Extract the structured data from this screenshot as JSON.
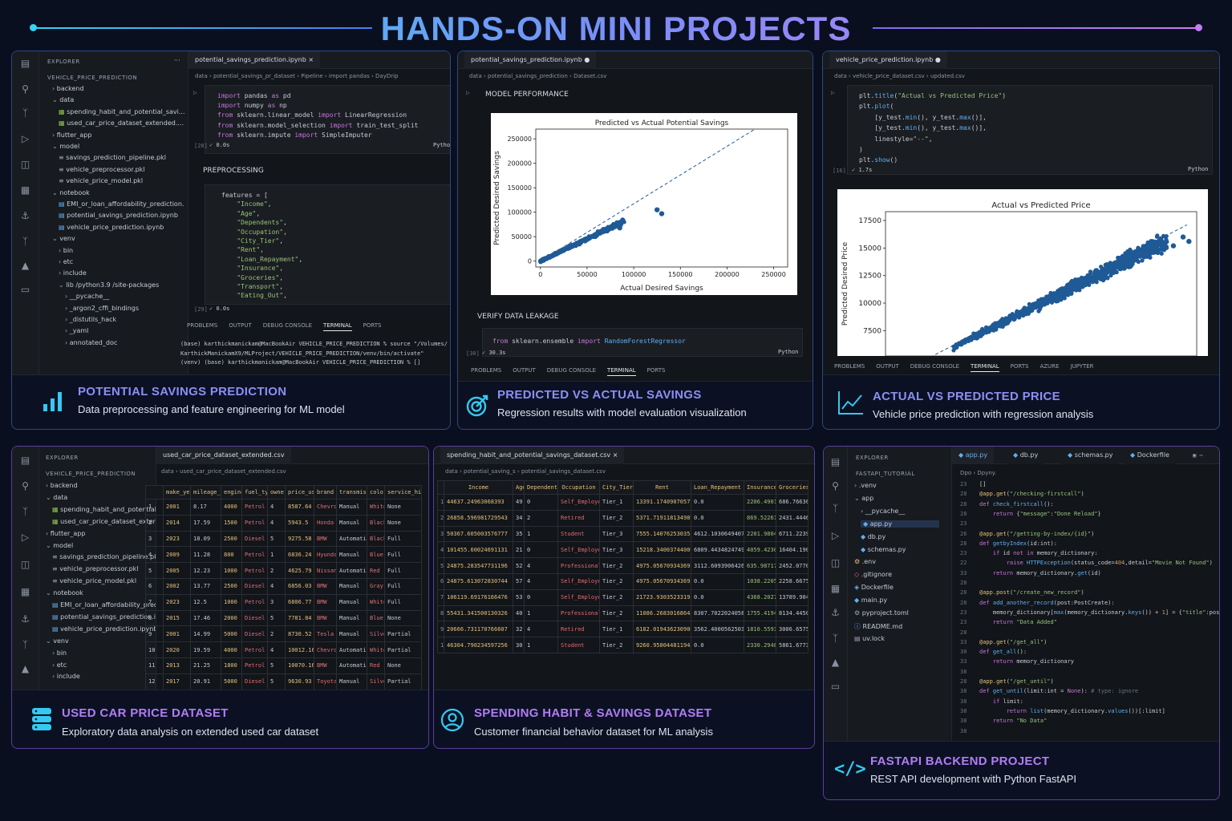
{
  "header": {
    "title": "HANDS-ON MINI PROJECTS"
  },
  "cards": {
    "c1": {
      "title": "POTENTIAL SAVINGS PREDICTION",
      "subtitle": "Data preprocessing and feature engineering for ML model",
      "icon": "bar-chart-icon"
    },
    "c2": {
      "title": "PREDICTED VS ACTUAL SAVINGS",
      "subtitle": "Regression results with model evaluation visualization",
      "icon": "target-icon"
    },
    "c3": {
      "title": "ACTUAL VS PREDICTED PRICE",
      "subtitle": "Vehicle price prediction with regression analysis",
      "icon": "line-chart-icon"
    },
    "c4": {
      "title": "USED CAR PRICE DATASET",
      "subtitle": "Exploratory data analysis on extended used car dataset",
      "icon": "database-icon"
    },
    "c5": {
      "title": "SPENDING HABIT & SAVINGS DATASET",
      "subtitle": "Customer financial behavior dataset for ML analysis",
      "icon": "user-circle-icon"
    },
    "c6": {
      "title": "FASTAPI BACKEND PROJECT",
      "subtitle": "REST API development with Python FastAPI",
      "icon": "code-icon"
    }
  },
  "s1": {
    "explorer": "EXPLORER",
    "root": "VEHICLE_PRICE_PREDICTION",
    "tree": [
      "backend",
      "data",
      "spending_habit_and_potential_savi...",
      "used_car_price_dataset_extended....",
      "flutter_app",
      "model",
      "savings_prediction_pipeline.pkl",
      "vehicle_preprocessor.pkl",
      "vehicle_price_model.pkl",
      "notebook",
      "EMI_or_loan_affordability_prediction.",
      "potential_savings_prediction.ipynb",
      "vehicle_price_prediction.ipynb",
      "venv",
      "bin",
      "etc",
      "include",
      "lib /python3.9 /site-packages",
      "__pycache__",
      "_argon2_cffi_bindings",
      "_distutils_hack",
      "_yaml",
      "annotated_doc"
    ],
    "tab": "potential_savings_prediction.ipynb",
    "crumb": "data  ›  potential_savings_pr_dataset  ›  Pipeline  ›  import pandas  ›  DayDrip",
    "code1": [
      "import pandas as pd",
      "import numpy as np",
      "from sklearn.linear_model import LinearRegression",
      "from sklearn.model_selection import train_test_split",
      "from sklearn.impute import SimpleImputer"
    ],
    "exec1": "[28]",
    "time1": "0.0s",
    "lang": "Python",
    "section": "PREPROCESSING",
    "code2": [
      "features = [",
      "    \"Income\",",
      "    \"Age\",",
      "    \"Dependents\",",
      "    \"Occupation\",",
      "    \"City_Tier\",",
      "    \"Rent\",",
      "    \"Loan_Repayment\",",
      "    \"Insurance\",",
      "    \"Groceries\",",
      "    \"Transport\",",
      "    \"Eating_Out\","
    ],
    "exec2": "[29]",
    "time2": "0.0s",
    "panel_tabs": [
      "PROBLEMS",
      "OUTPUT",
      "DEBUG CONSOLE",
      "TERMINAL",
      "PORTS"
    ],
    "terminal": [
      "(base) karthickmanickam@MacBookAir VEHICLE_PRICE_PREDICTION % source \"/Volumes/",
      "KarthickManickamX9/MLProject/VEHICLE_PRICE_PREDICTION/venv/bin/activate\"",
      "(venv) (base) karthickmanickam@MacBookAir VEHICLE_PRICE_PREDICTION % []"
    ]
  },
  "s2": {
    "tab": "potential_savings_prediction.ipynb",
    "crumb": "data  ›  potential_savings_prediction  ›  Dataset.csv",
    "section": "MODEL PERFORMANCE",
    "section2": "VERIFY DATA LEAKAGE",
    "code": "from sklearn.ensemble import RandomForestRegressor",
    "exec": "[30]",
    "time": "30.3s",
    "lang": "Python",
    "panel_tabs": [
      "PROBLEMS",
      "OUTPUT",
      "DEBUG CONSOLE",
      "TERMINAL",
      "PORTS"
    ]
  },
  "s3": {
    "tab": "vehicle_price_prediction.ipynb",
    "crumb": "data  ›  vehicle_price_dataset.csv  ›  updated.csv",
    "code": [
      "plt.title(\"Actual vs Predicted Price\")",
      "plt.plot(",
      "    [y_test.min(), y_test.max()],",
      "    [y_test.min(), y_test.max()],",
      "    linestyle=\"--\",",
      ")",
      "plt.show()"
    ],
    "exec": "[16]",
    "time": "1.7s",
    "lang": "Python",
    "panel_tabs": [
      "PROBLEMS",
      "OUTPUT",
      "DEBUG CONSOLE",
      "TERMINAL",
      "PORTS",
      "AZURE",
      "JUPYTER"
    ]
  },
  "s4": {
    "explorer": "EXPLORER",
    "root": "VEHICLE_PRICE_PREDICTION",
    "tree": [
      "backend",
      "data",
      "spending_habit_and_potential_savi...",
      "used_car_price_dataset_extended....",
      "flutter_app",
      "model",
      "savings_prediction_pipeline.pkl",
      "vehicle_preprocessor.pkl",
      "vehicle_price_model.pkl",
      "notebook",
      "EMI_or_loan_affordability_prediction",
      "potential_savings_prediction.ipynb",
      "vehicle_price_prediction.ipynb",
      "venv",
      "bin",
      "etc",
      "include"
    ],
    "tab": "used_car_price_dataset_extended.csv",
    "crumb": "data  ›  used_car_price_dataset_extended.csv",
    "columns": [
      "make_year",
      "mileage_km",
      "engine_cc",
      "fuel_type",
      "owner_count",
      "price_usd",
      "brand",
      "transmission",
      "color",
      "service_history"
    ],
    "rows": [
      [
        "1",
        "2001",
        "8.17",
        "4000",
        "Petrol",
        "4",
        "8587.64",
        "Chevrolet",
        "Manual",
        "White",
        "None"
      ],
      [
        "2",
        "2014",
        "17.59",
        "1500",
        "Petrol",
        "4",
        "5943.5",
        "Honda",
        "Manual",
        "Black",
        "None"
      ],
      [
        "3",
        "2023",
        "18.09",
        "2500",
        "Diesel",
        "5",
        "9275.58",
        "BMW",
        "Automatic",
        "Black",
        "Full"
      ],
      [
        "4",
        "2009",
        "11.28",
        "800",
        "Petrol",
        "1",
        "6836.24",
        "Hyundai",
        "Manual",
        "Blue",
        "Full"
      ],
      [
        "5",
        "2005",
        "12.23",
        "1000",
        "Petrol",
        "2",
        "4625.79",
        "Nissan",
        "Automatic",
        "Red",
        "Full"
      ],
      [
        "6",
        "2002",
        "13.77",
        "2500",
        "Diesel",
        "4",
        "6856.03",
        "BMW",
        "Manual",
        "Gray",
        "Full"
      ],
      [
        "7",
        "2023",
        "12.5",
        "1000",
        "Petrol",
        "3",
        "6806.77",
        "BMW",
        "Manual",
        "White",
        "Full"
      ],
      [
        "8",
        "2015",
        "17.46",
        "2000",
        "Diesel",
        "5",
        "7781.84",
        "BMW",
        "Manual",
        "Blue",
        "None"
      ],
      [
        "9",
        "2001",
        "14.99",
        "5000",
        "Diesel",
        "2",
        "8730.52",
        "Tesla",
        "Manual",
        "Silver",
        "Partial"
      ],
      [
        "10",
        "2020",
        "19.59",
        "4000",
        "Petrol",
        "4",
        "10012.16",
        "Chevrolet",
        "Automatic",
        "White",
        "Partial"
      ],
      [
        "11",
        "2013",
        "21.25",
        "1800",
        "Petrol",
        "5",
        "10070.16",
        "BMW",
        "Automatic",
        "Red",
        "None"
      ],
      [
        "12",
        "2017",
        "20.91",
        "5000",
        "Diesel",
        "5",
        "9630.93",
        "Toyota",
        "Manual",
        "Silver",
        "Partial"
      ]
    ]
  },
  "s5": {
    "tab": "spending_habit_and_potential_savings_dataset.csv",
    "crumb": "data  ›  potential_saving_s  ›  potential_savings_dataset.csv",
    "columns": [
      "Income",
      "Age",
      "Dependents",
      "Occupation",
      "City_Tier",
      "Rent",
      "Loan_Repayment",
      "Insurance",
      "Groceries"
    ],
    "rows": [
      [
        "1",
        "44637.24963068393",
        "49",
        "0",
        "Self_Employed",
        "Tier_1",
        "13391.174090705777",
        "0.0",
        "2206.4901250186",
        "686.76636572..."
      ],
      [
        "2",
        "26858.596981729543",
        "34",
        "2",
        "Retired",
        "Tier_2",
        "5371.719118134989",
        "0.0",
        "869.522610397243",
        "2431.44466010..."
      ],
      [
        "3",
        "50367.605003576777",
        "35",
        "1",
        "Student",
        "Tier_3",
        "7555.140762530351",
        "4612.103064940755",
        "2201.980490484",
        "6711.22390090..."
      ],
      [
        "4",
        "101455.60024691131",
        "21",
        "0",
        "Self_Employed",
        "Tier_3",
        "15218.340037440092",
        "6809.443482474919",
        "4059.42303787210",
        "16404.1903373..."
      ],
      [
        "5",
        "24875.283547731196",
        "52",
        "4",
        "Professional",
        "Tier_2",
        "4975.056709343692",
        "3112.609390642692",
        "635.987176965357",
        "2452.07707735..."
      ],
      [
        "6",
        "24875.613072830744",
        "57",
        "4",
        "Self_Employed",
        "Tier_2",
        "4975.056709343692",
        "0.0",
        "1038.22059252043",
        "2258.66758892..."
      ],
      [
        "7",
        "106119.69176166476",
        "53",
        "0",
        "Self_Employed",
        "Tier_2",
        "21723.930352331955",
        "0.0",
        "4368.202710231157",
        "13789.9049551..."
      ],
      [
        "8",
        "55431.341500130326",
        "40",
        "1",
        "Professional",
        "Tier_2",
        "11086.268301686453",
        "8307.70220240580",
        "1755.41943850307",
        "8134.4450066..."
      ],
      [
        "9",
        "20666.731170766607",
        "32",
        "4",
        "Retired",
        "Tier_1",
        "6182.019436230906",
        "3562.400056250373",
        "1810.55935963197",
        "3006.6575550..."
      ],
      [
        "10",
        "46304.790234597256",
        "30",
        "1",
        "Student",
        "Tier_2",
        "9260.958044811945",
        "0.0",
        "2330.29483450996",
        "5861.6773234..."
      ]
    ]
  },
  "s6": {
    "explorer": "EXPLORER",
    "root": "FASTAPI_TUTORIAL",
    "tree": [
      ".venv",
      "app",
      "__pycache__",
      "app.py",
      "db.py",
      "schemas.py",
      ".env",
      ".gitignore",
      "Dockerfile",
      "main.py",
      "pyproject.toml",
      "README.md",
      "uv.lock"
    ],
    "tabs": [
      "app.py",
      "db.py",
      "schemas.py",
      "Dockerfile"
    ],
    "crumb": "Dpo  ›  Dpyny.",
    "line_numbers": [
      "23",
      "28",
      "28",
      "28",
      "23",
      "26",
      "28",
      "23",
      "22",
      "33",
      "28",
      "28",
      "28",
      "23",
      "23",
      "28",
      "33",
      "30",
      "33",
      "38",
      "28",
      "38",
      "38",
      "38",
      "38",
      "38"
    ],
    "code": [
      "[]",
      "@app.get(\"/checking-firstcall\")",
      "def check_firstcall():",
      "    return {\"message\":\"Done Reload\"}",
      "",
      "@app.get(\"/getting-by-index/{id}\")",
      "def getbyIndex(id:int):",
      "    if id not in memory_dictionary:",
      "        raise HTTPException(status_code=404,detail=\"Movie Not Found\")",
      "    return memory_dictionary.get(id)",
      "",
      "@app.post(\"/create_new_record\")",
      "def add_another_record(post:PostCreate):",
      "    memory_dictionary[max(memory_dictionary.keys()) + 1] = {\"title\":post.",
      "    return \"Data Added\"",
      "",
      "@app.get(\"/get_all\")",
      "def get_all():",
      "    return memory_dictionary",
      "",
      "@app.get(\"/get_until\")",
      "def get_until(limit:int = None): # type: ignore",
      "    if limit:",
      "        return list(memory_dictionary.values())[:limit]",
      "    return \"No Data\"",
      ""
    ]
  },
  "chart_data": [
    {
      "type": "scatter",
      "title": "Predicted vs Actual Potential Savings",
      "xlabel": "Actual Desired Savings",
      "ylabel": "Predicted Desired Savings",
      "xlim": [
        -5000,
        265000
      ],
      "ylim": [
        -12000,
        270000
      ],
      "xticks": [
        "0",
        "50000",
        "100000",
        "150000",
        "200000",
        "250000"
      ],
      "yticks": [
        "0",
        "50000",
        "100000",
        "150000",
        "200000",
        "250000"
      ],
      "reference_line": {
        "from": [
          0,
          0
        ],
        "to": [
          230000,
          270000
        ],
        "style": "dashed"
      },
      "cluster": {
        "x_range": [
          0,
          90000
        ],
        "y_range": [
          0,
          70000
        ],
        "description": "dense cluster along the diagonal"
      },
      "points": [
        [
          125000,
          105000
        ],
        [
          130000,
          97000
        ],
        [
          85000,
          68000
        ],
        [
          60000,
          55000
        ],
        [
          70000,
          62000
        ],
        [
          5000,
          5000
        ],
        [
          20000,
          18000
        ],
        [
          40000,
          35000
        ]
      ],
      "color": "#1f5a96"
    },
    {
      "type": "scatter",
      "title": "Actual vs Predicted Price",
      "ylabel": "Predicted Desired Price",
      "xlim": [
        3000,
        19000
      ],
      "ylim": [
        5200,
        18300
      ],
      "yticks": [
        "7500",
        "10000",
        "12500",
        "15000",
        "17500"
      ],
      "reference_line": {
        "from": [
          3000,
          3000
        ],
        "to": [
          18500,
          17100
        ],
        "style": "dashed"
      },
      "cluster": {
        "x_range": [
          6500,
          17500
        ],
        "y_range": [
          5200,
          16500
        ],
        "description": "dense band rising along the diagonal"
      },
      "points": [
        [
          18300,
          16000
        ],
        [
          18600,
          15600
        ],
        [
          17800,
          15200
        ],
        [
          17000,
          14600
        ]
      ],
      "color": "#1f5a96"
    }
  ]
}
